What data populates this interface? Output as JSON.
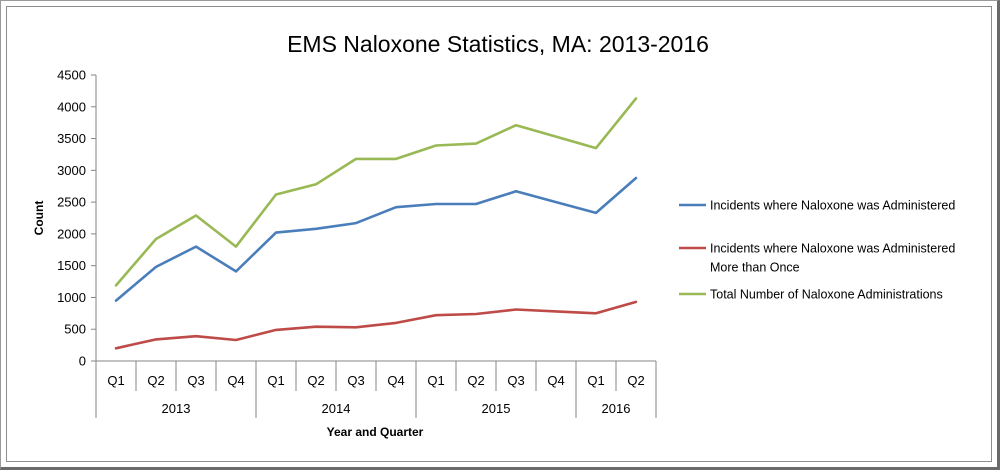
{
  "chart_data": {
    "type": "line",
    "title": "EMS Naloxone Statistics, MA: 2013-2016",
    "xlabel": "Year and Quarter",
    "ylabel": "Count",
    "ylim": [
      0,
      4500
    ],
    "yticks": [
      0,
      500,
      1000,
      1500,
      2000,
      2500,
      3000,
      3500,
      4000,
      4500
    ],
    "categories": [
      "Q1",
      "Q2",
      "Q3",
      "Q4",
      "Q1",
      "Q2",
      "Q3",
      "Q4",
      "Q1",
      "Q2",
      "Q3",
      "Q4",
      "Q1",
      "Q2"
    ],
    "year_groups": [
      {
        "label": "2013",
        "count": 4
      },
      {
        "label": "2014",
        "count": 4
      },
      {
        "label": "2015",
        "count": 4
      },
      {
        "label": "2016",
        "count": 2
      }
    ],
    "grid": false,
    "legend_position": "right",
    "series": [
      {
        "name": "Incidents where Naloxone was Administered",
        "color": "#4a7ebb",
        "values": [
          950,
          1480,
          1800,
          1410,
          2020,
          2080,
          2170,
          2420,
          2470,
          2470,
          2670,
          2500,
          2330,
          2880
        ]
      },
      {
        "name": "Incidents where Naloxone was Administered More than Once",
        "color": "#be4b48",
        "values": [
          200,
          340,
          390,
          330,
          490,
          540,
          530,
          600,
          720,
          740,
          810,
          780,
          750,
          930
        ]
      },
      {
        "name": "Total Number of Naloxone Administrations",
        "color": "#98b954",
        "values": [
          1190,
          1920,
          2290,
          1800,
          2620,
          2780,
          3180,
          3180,
          3390,
          3420,
          3710,
          3530,
          3350,
          4130
        ]
      }
    ]
  }
}
